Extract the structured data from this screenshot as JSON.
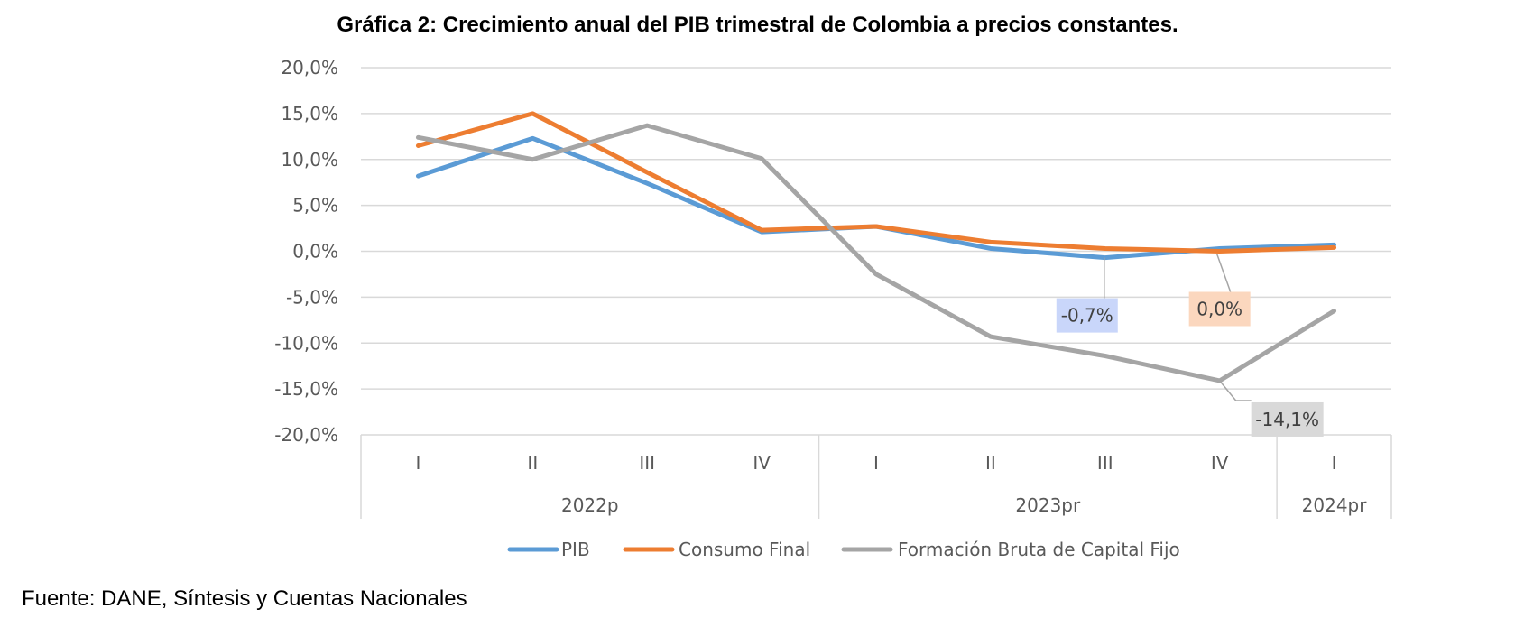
{
  "chart_data": {
    "type": "line",
    "title": "Gráfica 2: Crecimiento anual del PIB trimestral de Colombia a precios constantes.",
    "source": "Fuente: DANE, Síntesis y Cuentas Nacionales",
    "ylim": [
      -20,
      20
    ],
    "ytick_values": [
      20,
      15,
      10,
      5,
      0,
      -5,
      -10,
      -15,
      -20
    ],
    "ytick_labels": [
      "20,0%",
      "15,0%",
      "10,0%",
      "5,0%",
      "0,0%",
      "-5,0%",
      "-10,0%",
      "-15,0%",
      "-20,0%"
    ],
    "grid": true,
    "legend_position": "bottom",
    "categories": [
      "I",
      "II",
      "III",
      "IV",
      "I",
      "II",
      "III",
      "IV",
      "I"
    ],
    "groups": [
      {
        "label": "2022p",
        "count": 4
      },
      {
        "label": "2023pr",
        "count": 4
      },
      {
        "label": "2024pr",
        "count": 1
      }
    ],
    "series": [
      {
        "name": "PIB",
        "color": "#5B9BD5",
        "values": [
          8.2,
          12.3,
          7.4,
          2.1,
          2.7,
          0.3,
          -0.7,
          0.3,
          0.7
        ]
      },
      {
        "name": "Consumo Final",
        "color": "#ED7D31",
        "values": [
          11.5,
          15.0,
          8.6,
          2.3,
          2.7,
          1.0,
          0.3,
          0.0,
          0.4
        ]
      },
      {
        "name": "Formación Bruta de Capital Fijo",
        "color": "#A5A5A5",
        "values": [
          12.4,
          10.0,
          13.7,
          10.1,
          -2.5,
          -9.3,
          -11.4,
          -14.1,
          -6.5
        ]
      }
    ],
    "annotations": [
      {
        "text": "-0,7%",
        "series": 0,
        "point": 6,
        "fill": "#C9D6FA"
      },
      {
        "text": "0,0%",
        "series": 1,
        "point": 7,
        "fill": "#FBD7BE"
      },
      {
        "text": "-14,1%",
        "series": 2,
        "point": 7,
        "fill": "#D9D9D9"
      }
    ]
  }
}
